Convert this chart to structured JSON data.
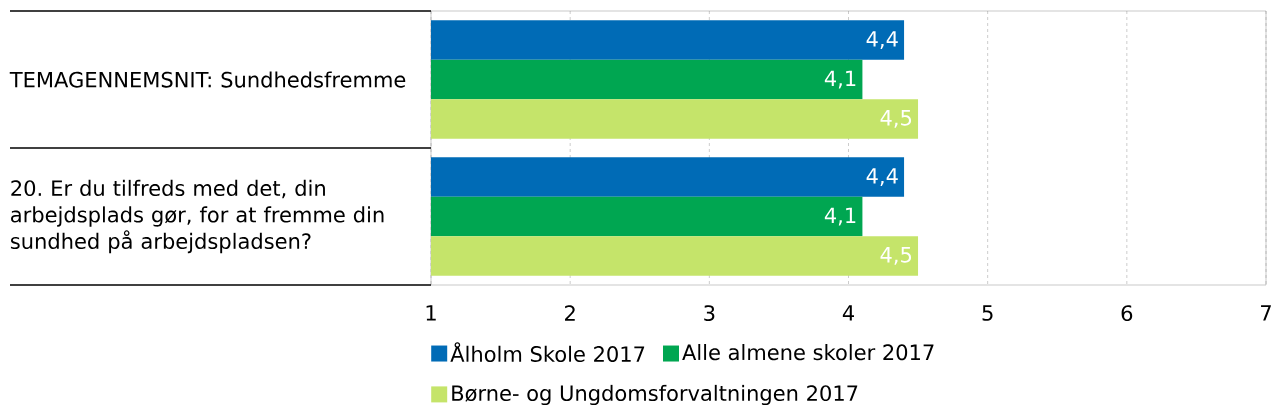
{
  "chart_data": {
    "type": "bar",
    "orientation": "horizontal",
    "categories": [
      "TEMAGENNEMSNIT: Sundhedsfremme",
      "20. Er du tilfreds med det, din arbejdsplads gør, for at fremme din sundhed på arbejdspladsen?"
    ],
    "series": [
      {
        "name": "Ålholm Skole 2017",
        "color": "#006bb6",
        "values": [
          4.4,
          4.4
        ],
        "value_labels": [
          "4,4",
          "4,4"
        ]
      },
      {
        "name": "Alle almene skoler 2017",
        "color": "#00a651",
        "values": [
          4.1,
          4.1
        ],
        "value_labels": [
          "4,1",
          "4,1"
        ]
      },
      {
        "name": "Børne- og Ungdomsforvaltningen 2017",
        "color": "#c5e46a",
        "values": [
          4.5,
          4.5
        ],
        "value_labels": [
          "4,5",
          "4,5"
        ]
      }
    ],
    "xlim": [
      1,
      7
    ],
    "xticks": [
      1,
      2,
      3,
      4,
      5,
      6,
      7
    ],
    "grid": "x",
    "legend": "bottom"
  }
}
